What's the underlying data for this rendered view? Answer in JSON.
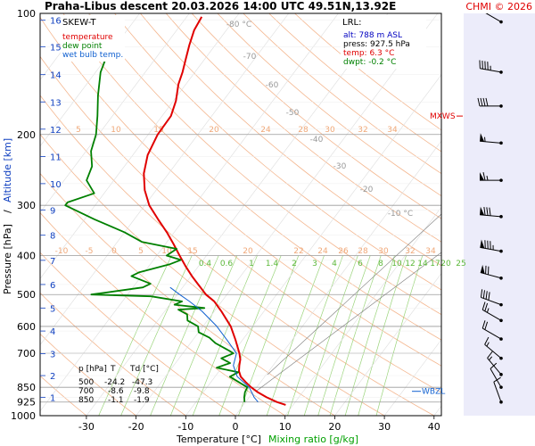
{
  "header": {
    "title": "Praha-Libus   descent   20.03.2026 14:00 UTC   49.51N,13.92E",
    "copyright": "CHMI © 2026"
  },
  "legend": {
    "heading": "SKEW-T",
    "items": [
      {
        "label": "temperature",
        "color": "#e00000"
      },
      {
        "label": "dew point",
        "color": "#008000"
      },
      {
        "label": "wet bulb temp.",
        "color": "#1060d0"
      }
    ]
  },
  "lrl_box": {
    "heading": "LRL:",
    "lines": [
      {
        "text": "alt: 788 m ASL",
        "color": "#0000c0"
      },
      {
        "text": "press: 927.5 hPa",
        "color": "#000000"
      },
      {
        "text": "temp: 6.3 °C",
        "color": "#e00000"
      },
      {
        "text": "dwpt: -0.2 °C",
        "color": "#008000"
      }
    ]
  },
  "summary_table": {
    "headers": [
      "p [hPa]",
      "T",
      "Td [°C]"
    ],
    "rows": [
      [
        "500",
        "-24.2",
        "-47.3"
      ],
      [
        "700",
        "-8.6",
        "-9.8"
      ],
      [
        "850",
        "-1.1",
        "-1.9"
      ]
    ]
  },
  "markers": {
    "mxws": "MXWS",
    "wbzl": "WBZL"
  },
  "chart_data": {
    "type": "line",
    "title": "Praha-Libus   descent   20.03.2026 14:00 UTC   49.51N,13.92E",
    "xlabel": "Temperature [°C]",
    "xlabel2": "Mixing ratio [g/kg]",
    "ylabel": "Pressure [hPa]",
    "ylabel2": "Altitude [km]",
    "y_scale": "log",
    "xlim": [
      -35,
      45
    ],
    "ylim": [
      1000,
      100
    ],
    "x_ticks": [
      -30,
      -20,
      -10,
      0,
      10,
      20,
      30,
      40
    ],
    "pressure_ticks": [
      100,
      200,
      300,
      400,
      500,
      600,
      700,
      850,
      925,
      1000
    ],
    "altitude_ticks": [
      {
        "km": 1,
        "p": 900
      },
      {
        "km": 2,
        "p": 795
      },
      {
        "km": 3,
        "p": 701
      },
      {
        "km": 4,
        "p": 616
      },
      {
        "km": 5,
        "p": 540
      },
      {
        "km": 6,
        "p": 472
      },
      {
        "km": 7,
        "p": 411
      },
      {
        "km": 8,
        "p": 356
      },
      {
        "km": 9,
        "p": 308
      },
      {
        "km": 10,
        "p": 265
      },
      {
        "km": 11,
        "p": 227
      },
      {
        "km": 12,
        "p": 194
      },
      {
        "km": 13,
        "p": 166
      },
      {
        "km": 14,
        "p": 142
      },
      {
        "km": 15,
        "p": 121
      },
      {
        "km": 16,
        "p": 104
      }
    ],
    "mixing_ratio_labels": [
      "0.4",
      "0.6",
      "1",
      "1.4",
      "2",
      "3",
      "4",
      "6",
      "8",
      "10",
      "12",
      "14",
      "17",
      "20",
      "25"
    ],
    "dry_adiabat_labels": [
      "-10",
      "-5",
      "0",
      "5",
      "10",
      "15",
      "20",
      "22",
      "24",
      "26",
      "28",
      "30",
      "32",
      "34"
    ],
    "upper_theta_labels": [
      "5",
      "10",
      "15",
      "20",
      "24",
      "28",
      "30",
      "32",
      "34"
    ],
    "isotherm_labels": [
      "-80 °C",
      "-70",
      "-60",
      "-50",
      "-40",
      "-30",
      "-20",
      "-10 °C"
    ],
    "series": [
      {
        "name": "temperature",
        "color": "#e00000",
        "points": [
          [
            940,
            8.5
          ],
          [
            925,
            6.3
          ],
          [
            900,
            3.5
          ],
          [
            875,
            1.0
          ],
          [
            850,
            -1.1
          ],
          [
            825,
            -3.0
          ],
          [
            800,
            -4.8
          ],
          [
            775,
            -6.0
          ],
          [
            750,
            -6.8
          ],
          [
            725,
            -7.5
          ],
          [
            700,
            -8.6
          ],
          [
            650,
            -11.3
          ],
          [
            600,
            -14.4
          ],
          [
            550,
            -18.6
          ],
          [
            520,
            -21.5
          ],
          [
            500,
            -24.2
          ],
          [
            470,
            -27.5
          ],
          [
            450,
            -29.8
          ],
          [
            425,
            -32.6
          ],
          [
            400,
            -35.4
          ],
          [
            375,
            -38.3
          ],
          [
            350,
            -41.5
          ],
          [
            325,
            -45.2
          ],
          [
            300,
            -49.1
          ],
          [
            275,
            -52.3
          ],
          [
            250,
            -55.0
          ],
          [
            225,
            -57.0
          ],
          [
            200,
            -58.1
          ],
          [
            180,
            -58.2
          ],
          [
            165,
            -59.5
          ],
          [
            150,
            -61.5
          ],
          [
            140,
            -62.5
          ],
          [
            130,
            -63.8
          ],
          [
            120,
            -65.2
          ],
          [
            110,
            -66.5
          ],
          [
            102,
            -67.0
          ]
        ]
      },
      {
        "name": "dew point",
        "color": "#008000",
        "points": [
          [
            925,
            -0.2
          ],
          [
            900,
            -1.0
          ],
          [
            875,
            -1.6
          ],
          [
            850,
            -1.9
          ],
          [
            800,
            -7.0
          ],
          [
            780,
            -6.0
          ],
          [
            760,
            -11.0
          ],
          [
            740,
            -9.0
          ],
          [
            720,
            -11.5
          ],
          [
            700,
            -9.8
          ],
          [
            690,
            -11.0
          ],
          [
            660,
            -15.0
          ],
          [
            640,
            -17.0
          ],
          [
            620,
            -20.0
          ],
          [
            600,
            -21.0
          ],
          [
            580,
            -24.0
          ],
          [
            560,
            -25.0
          ],
          [
            545,
            -27.5
          ],
          [
            540,
            -22.5
          ],
          [
            530,
            -29.0
          ],
          [
            520,
            -28.0
          ],
          [
            505,
            -35.0
          ],
          [
            500,
            -47.3
          ],
          [
            495,
            -45.0
          ],
          [
            480,
            -38.0
          ],
          [
            470,
            -37.0
          ],
          [
            450,
            -42.0
          ],
          [
            440,
            -41.0
          ],
          [
            420,
            -36.0
          ],
          [
            410,
            -34.5
          ],
          [
            400,
            -38.0
          ],
          [
            385,
            -37.0
          ],
          [
            370,
            -45.0
          ],
          [
            350,
            -50.0
          ],
          [
            325,
            -58.0
          ],
          [
            300,
            -66.0
          ],
          [
            295,
            -66.0
          ],
          [
            280,
            -62.0
          ],
          [
            260,
            -65.5
          ],
          [
            240,
            -66.5
          ],
          [
            220,
            -69.0
          ],
          [
            200,
            -70.5
          ],
          [
            180,
            -73.0
          ],
          [
            160,
            -76.0
          ],
          [
            140,
            -79.0
          ],
          [
            120,
            -81.0
          ],
          [
            104,
            -83.0
          ]
        ]
      },
      {
        "name": "wet bulb temp.",
        "color": "#1060d0",
        "points": [
          [
            925,
            2.5
          ],
          [
            900,
            1.0
          ],
          [
            850,
            -1.5
          ],
          [
            800,
            -5.5
          ],
          [
            750,
            -8.0
          ],
          [
            700,
            -9.2
          ],
          [
            650,
            -13.0
          ],
          [
            600,
            -17.2
          ],
          [
            550,
            -22.5
          ],
          [
            520,
            -26.5
          ],
          [
            500,
            -29.5
          ],
          [
            480,
            -32.5
          ]
        ]
      }
    ],
    "wind_barbs": [
      {
        "p": 105,
        "dir": 300,
        "speed_kt": 60
      },
      {
        "p": 140,
        "dir": 280,
        "speed_kt": 45
      },
      {
        "p": 170,
        "dir": 270,
        "speed_kt": 40
      },
      {
        "p": 210,
        "dir": 275,
        "speed_kt": 55
      },
      {
        "p": 260,
        "dir": 270,
        "speed_kt": 65
      },
      {
        "p": 320,
        "dir": 275,
        "speed_kt": 80
      },
      {
        "p": 390,
        "dir": 280,
        "speed_kt": 85
      },
      {
        "p": 455,
        "dir": 285,
        "speed_kt": 70
      },
      {
        "p": 530,
        "dir": 290,
        "speed_kt": 40
      },
      {
        "p": 580,
        "dir": 300,
        "speed_kt": 25
      },
      {
        "p": 645,
        "dir": 300,
        "speed_kt": 20
      },
      {
        "p": 720,
        "dir": 310,
        "speed_kt": 15
      },
      {
        "p": 790,
        "dir": 320,
        "speed_kt": 15
      },
      {
        "p": 850,
        "dir": 330,
        "speed_kt": 10
      },
      {
        "p": 925,
        "dir": 340,
        "speed_kt": 10
      }
    ],
    "mxws_pressure": 180,
    "wbzl_pressure": 870
  }
}
